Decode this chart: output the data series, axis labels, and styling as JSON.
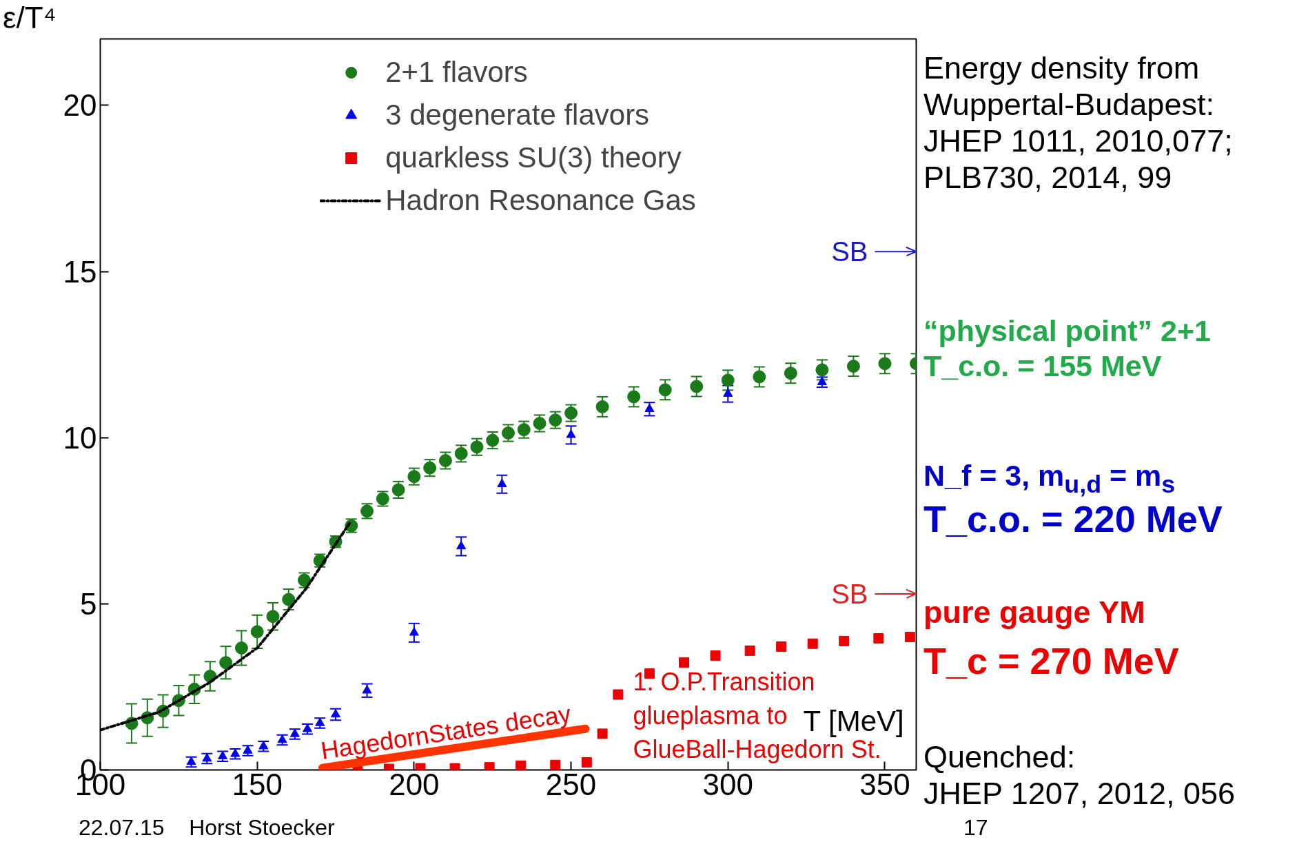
{
  "chart_data": {
    "type": "scatter",
    "xlabel": "T [MeV]",
    "ylabel": "ε/T⁴",
    "xlim": [
      100,
      360
    ],
    "ylim": [
      0,
      22
    ],
    "xticks": [
      100,
      150,
      200,
      250,
      300,
      350
    ],
    "yticks": [
      0,
      5,
      10,
      15,
      20
    ],
    "grid": false,
    "legend": "top",
    "series": [
      {
        "name": "2+1 flavors",
        "marker": "circle",
        "color": "#1a7a1a",
        "x": [
          110,
          115,
          120,
          125,
          130,
          135,
          140,
          145,
          150,
          155,
          160,
          165,
          170,
          175,
          180,
          185,
          190,
          195,
          200,
          205,
          210,
          215,
          220,
          225,
          230,
          235,
          240,
          245,
          250,
          260,
          270,
          280,
          290,
          300,
          310,
          320,
          330,
          340,
          350,
          360
        ],
        "values": [
          1.4,
          1.57,
          1.77,
          2.09,
          2.43,
          2.82,
          3.23,
          3.67,
          4.16,
          4.62,
          5.13,
          5.71,
          6.3,
          6.87,
          7.35,
          7.79,
          8.16,
          8.43,
          8.83,
          9.09,
          9.31,
          9.52,
          9.72,
          9.92,
          10.14,
          10.24,
          10.43,
          10.53,
          10.74,
          10.93,
          11.23,
          11.44,
          11.54,
          11.73,
          11.83,
          11.94,
          12.04,
          12.15,
          12.23,
          12.23
        ],
        "errors": [
          0.59,
          0.56,
          0.49,
          0.45,
          0.43,
          0.44,
          0.49,
          0.52,
          0.5,
          0.41,
          0.31,
          0.22,
          0.19,
          0.17,
          0.2,
          0.22,
          0.22,
          0.25,
          0.25,
          0.25,
          0.25,
          0.25,
          0.25,
          0.25,
          0.25,
          0.25,
          0.25,
          0.25,
          0.25,
          0.3,
          0.3,
          0.3,
          0.3,
          0.3,
          0.3,
          0.3,
          0.3,
          0.3,
          0.3,
          0.3
        ]
      },
      {
        "name": "3 degenerate flavors",
        "marker": "triangle",
        "color": "#0000ee",
        "x": [
          129,
          134,
          139,
          143,
          147,
          152,
          158,
          162,
          166,
          170,
          175,
          185,
          200,
          215,
          228,
          250,
          275,
          300,
          330
        ],
        "values": [
          0.24,
          0.34,
          0.41,
          0.48,
          0.58,
          0.71,
          0.9,
          1.08,
          1.23,
          1.41,
          1.67,
          2.39,
          4.13,
          6.73,
          8.6,
          10.08,
          10.86,
          11.32,
          11.67
        ],
        "errors": [
          0.15,
          0.15,
          0.15,
          0.15,
          0.15,
          0.15,
          0.15,
          0.15,
          0.15,
          0.15,
          0.17,
          0.2,
          0.28,
          0.28,
          0.27,
          0.27,
          0.2,
          0.25,
          0.15
        ]
      },
      {
        "name": "quarkless SU(3) theory",
        "marker": "square",
        "color": "#ee0000",
        "x": [
          182,
          192,
          202,
          213,
          224,
          234,
          245,
          255,
          260,
          265,
          275,
          286,
          296,
          307,
          317,
          327,
          337,
          348,
          358
        ],
        "values": [
          0.0,
          0.03,
          0.05,
          0.05,
          0.08,
          0.13,
          0.15,
          0.23,
          1.09,
          2.27,
          2.9,
          3.23,
          3.44,
          3.59,
          3.71,
          3.8,
          3.88,
          3.96,
          4.0
        ]
      },
      {
        "name": "Hadron Resonance Gas",
        "type": "line",
        "line_style": "dashdot",
        "color": "#000000",
        "x": [
          100,
          118.7,
          134.8,
          150.1,
          165.5,
          179.4
        ],
        "values": [
          1.2,
          1.74,
          2.63,
          3.68,
          5.45,
          7.42
        ]
      },
      {
        "type": "line",
        "color": "#ff3300",
        "x": [
          170.8,
          254.6
        ],
        "values": [
          0.06,
          1.24
        ]
      }
    ],
    "ref_lines": [
      {
        "axis": "y",
        "value": 15.6,
        "label": "SB",
        "color": "#1a1acc"
      },
      {
        "axis": "y",
        "value": 5.3,
        "label": "SB",
        "color": "#dd2222"
      }
    ],
    "annotations": [
      "Energy density from\nWuppertal-Budapest:\nJHEP 1011, 2010,077;\nPLB730, 2014, 99",
      "“physical point” 2+1\nT_c.o. = 155 MeV",
      "N_f = 3, m$_{u,d}$ = m$_{s}$",
      "T_c.o. = 220 MeV",
      "pure gauge YM",
      "T_c = 270 MeV",
      "Quenched:\nJHEP 1207, 2012, 056",
      "22.07.15    Horst Stoecker",
      "17",
      "1. O.P.Transition\nglueplasma to\nGlueBall-Hagedorn St.",
      {
        "text": "HagedornStates decay",
        "x": 171,
        "y": 0.15
      }
    ]
  }
}
